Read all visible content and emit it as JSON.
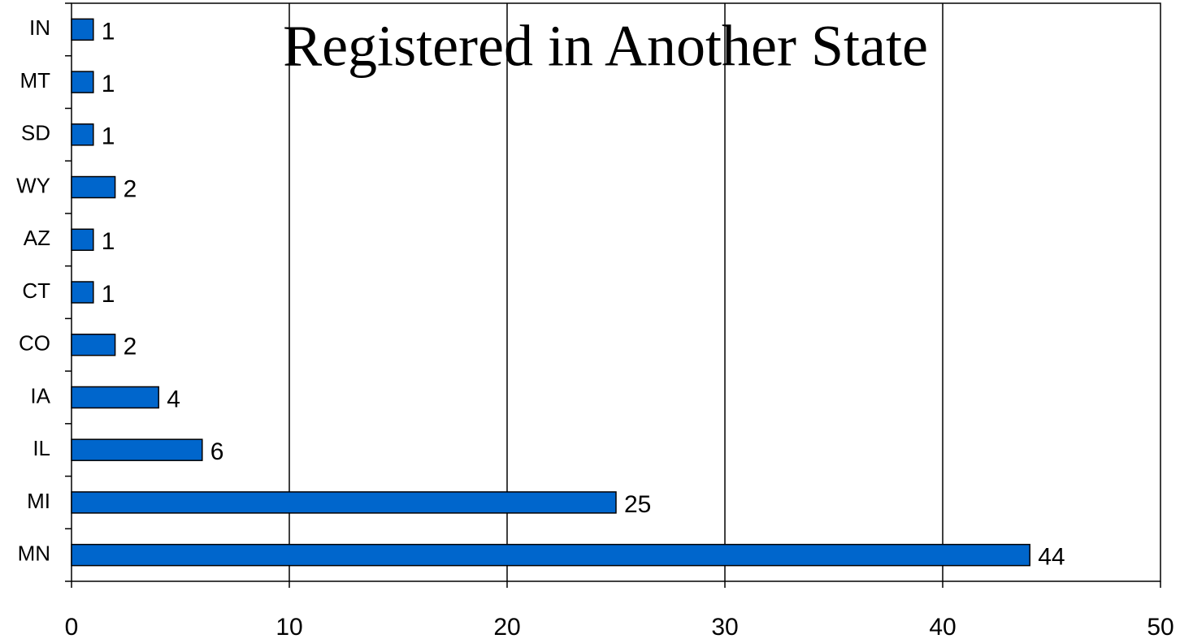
{
  "chart_data": {
    "type": "barh",
    "title": "Registered in Another State",
    "categories": [
      "IN",
      "MT",
      "SD",
      "WY",
      "AZ",
      "CT",
      "CO",
      "IA",
      "IL",
      "MI",
      "MN"
    ],
    "values": [
      1,
      1,
      1,
      2,
      1,
      1,
      2,
      4,
      6,
      25,
      44
    ],
    "color": "#0066cc",
    "xlim": [
      0,
      50
    ],
    "xticks": [
      0,
      10,
      20,
      30,
      40,
      50
    ],
    "grid": true
  }
}
